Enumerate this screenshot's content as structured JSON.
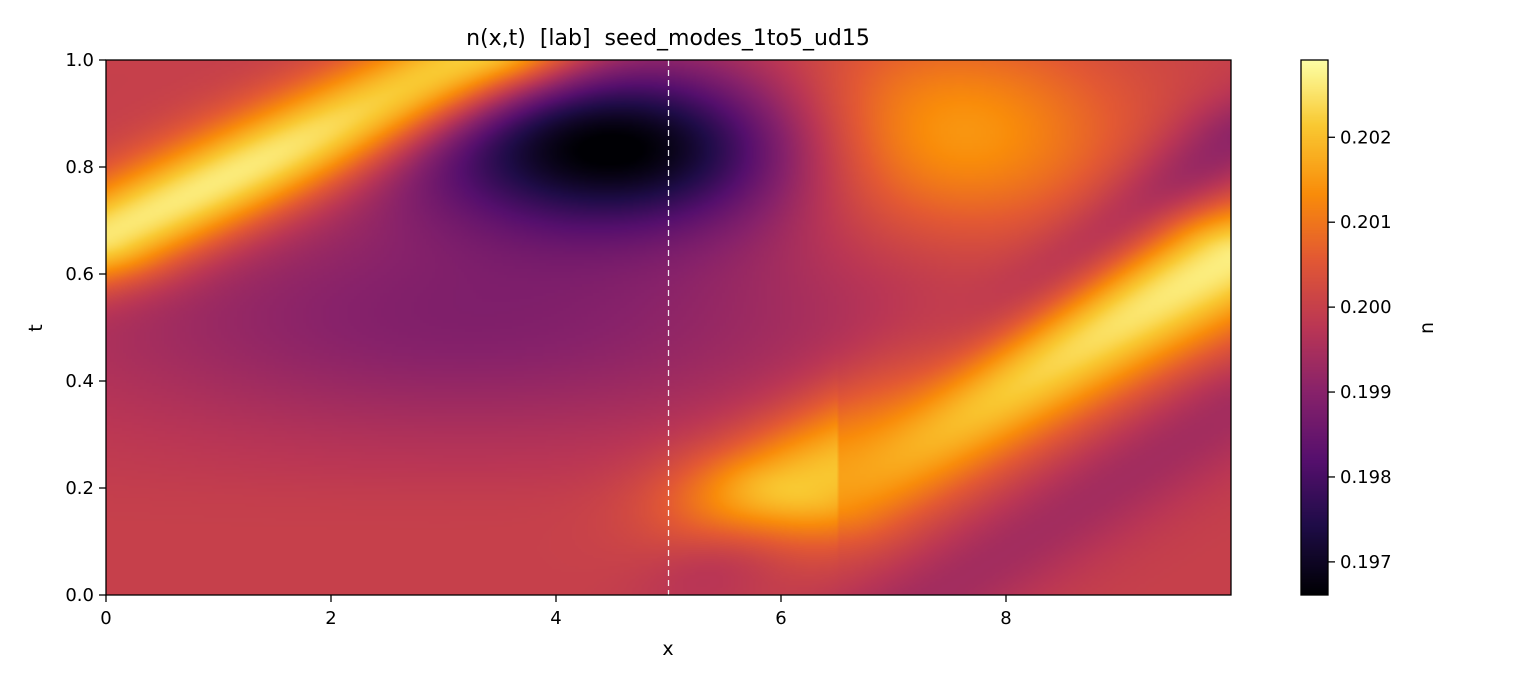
{
  "chart_data": {
    "type": "heatmap",
    "title": "n(x,t)  [lab]  seed_modes_1to5_ud15",
    "xlabel": "x",
    "ylabel": "t",
    "xlim": [
      0,
      10
    ],
    "ylim": [
      0.0,
      1.0
    ],
    "x_ticks": [
      0,
      2,
      4,
      6,
      8
    ],
    "x_tick_labels": [
      "0",
      "2",
      "4",
      "6",
      "8"
    ],
    "y_ticks": [
      0.0,
      0.2,
      0.4,
      0.6,
      0.8,
      1.0
    ],
    "y_tick_labels": [
      "0.0",
      "0.2",
      "0.4",
      "0.6",
      "0.8",
      "1.0"
    ],
    "colormap": "inferno",
    "colorbar": {
      "label": "n",
      "vmin": 0.19661,
      "vmax": 0.20291,
      "ticks": [
        0.197,
        0.198,
        0.199,
        0.2,
        0.201,
        0.202
      ],
      "tick_labels": [
        "0.197",
        "0.198",
        "0.199",
        "0.200",
        "0.201",
        "0.202"
      ]
    },
    "grid": false,
    "reference_line": {
      "axis": "x",
      "value": 5.0,
      "style": "dashed",
      "color": "#ffffff"
    },
    "field_features": [
      {
        "kind": "ridge",
        "from": [
          0.0,
          0.67
        ],
        "to": [
          3.3,
          1.0
        ],
        "value": 0.2029
      },
      {
        "kind": "ridge",
        "from": [
          6.2,
          0.2
        ],
        "to": [
          10.0,
          0.63
        ],
        "value": 0.2027
      },
      {
        "kind": "trough",
        "center": [
          4.55,
          0.84
        ],
        "value": 0.1966
      },
      {
        "kind": "hump",
        "center": [
          7.4,
          0.86
        ],
        "value": 0.2021
      },
      {
        "kind": "background",
        "value": 0.2
      }
    ]
  }
}
